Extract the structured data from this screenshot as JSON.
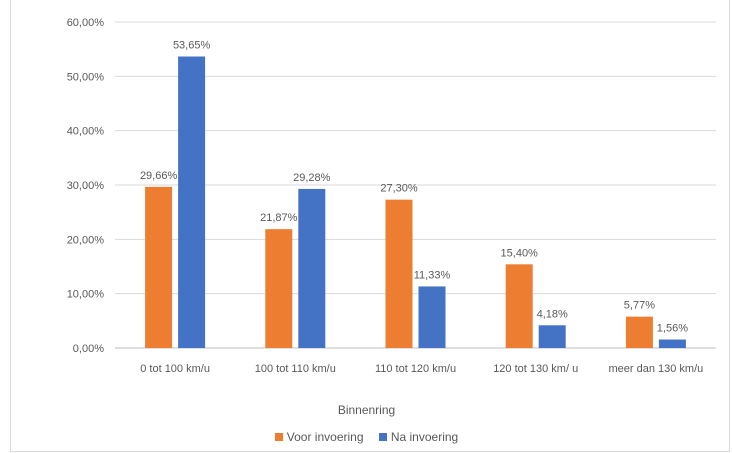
{
  "chart_data": {
    "type": "bar",
    "categories": [
      "0 tot  100 km/u",
      "100 tot 110 km/u",
      "110 tot 120 km/u",
      "120 tot 130 km/ u",
      "meer dan 130 km/u"
    ],
    "series": [
      {
        "name": "Voor invoering",
        "color": "#ED7D31",
        "values": [
          29.66,
          21.87,
          27.3,
          15.4,
          5.77
        ],
        "labels": [
          "29,66%",
          "21,87%",
          "27,30%",
          "15,40%",
          "5,77%"
        ]
      },
      {
        "name": "Na invoering",
        "color": "#4472C4",
        "values": [
          53.65,
          29.28,
          11.33,
          4.18,
          1.56
        ],
        "labels": [
          "53,65%",
          "29,28%",
          "11,33%",
          "4,18%",
          "1,56%"
        ]
      }
    ],
    "yticks": [
      "0,00%",
      "10,00%",
      "20,00%",
      "30,00%",
      "40,00%",
      "50,00%",
      "60,00%"
    ],
    "ylim": [
      0,
      60
    ],
    "xlabel": "Binnenring",
    "grid": true,
    "legend": "bottom"
  }
}
